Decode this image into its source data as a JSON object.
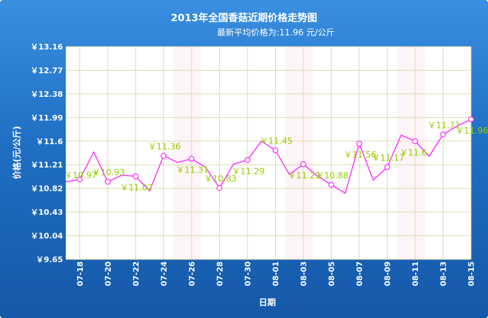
{
  "chart_data": {
    "type": "line",
    "title": "2013年全国香菇近期价格走势图",
    "subtitle": "最新平均价格为:11.96 元/公斤",
    "xlabel": "日期",
    "ylabel": "价格(元/公斤)",
    "ylim": [
      9.65,
      13.16
    ],
    "yticks": [
      "￥13.16",
      "￥12.77",
      "￥12.38",
      "￥11.99",
      "￥11.6",
      "￥11.21",
      "￥10.82",
      "￥10.43",
      "￥10.04",
      "￥9.65"
    ],
    "ytick_values": [
      13.16,
      12.77,
      12.38,
      11.99,
      11.6,
      11.21,
      10.82,
      10.43,
      10.04,
      9.65
    ],
    "xticks": [
      "07-18",
      "07-20",
      "07-22",
      "07-24",
      "07-26",
      "07-28",
      "07-30",
      "08-01",
      "08-03",
      "08-05",
      "08-07",
      "08-09",
      "08-11",
      "08-13",
      "08-15"
    ],
    "x": [
      "07-17",
      "07-18",
      "07-19",
      "07-20",
      "07-21",
      "07-22",
      "07-23",
      "07-24",
      "07-25",
      "07-26",
      "07-27",
      "07-28",
      "07-29",
      "07-30",
      "07-31",
      "08-01",
      "08-02",
      "08-03",
      "08-04",
      "08-05",
      "08-06",
      "08-07",
      "08-08",
      "08-09",
      "08-10",
      "08-11",
      "08-12",
      "08-13",
      "08-14",
      "08-15"
    ],
    "values": [
      10.93,
      10.97,
      11.42,
      10.93,
      11.04,
      11.02,
      10.78,
      11.36,
      11.25,
      11.31,
      11.17,
      10.83,
      11.22,
      11.29,
      11.6,
      11.45,
      11.05,
      11.22,
      11.03,
      10.88,
      10.74,
      11.56,
      10.96,
      11.17,
      11.7,
      11.6,
      11.35,
      11.71,
      11.85,
      11.96
    ],
    "data_labels": [
      "",
      "￥10.97",
      "",
      "￥10.93",
      "",
      "￥11.02",
      "",
      "￥11.36",
      "",
      "￥11.31",
      "",
      "￥10.83",
      "",
      "￥11.29",
      "",
      "￥11.45",
      "",
      "￥11.22",
      "",
      "￥10.88",
      "",
      "￥11.56",
      "",
      "￥11.17",
      "",
      "￥11.6",
      "",
      "￥11.71",
      "",
      "￥11.96"
    ],
    "grid": true,
    "colors": {
      "line": "#ff33ff",
      "label": "#99cc00",
      "band": "#fff4f8",
      "grid": "#d8dcb0"
    }
  }
}
